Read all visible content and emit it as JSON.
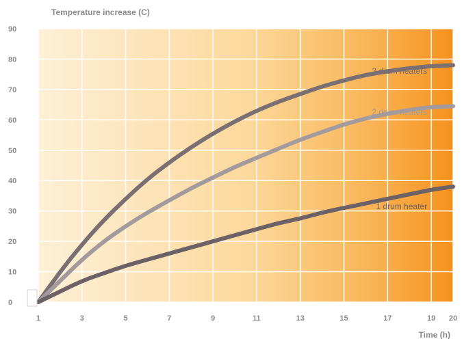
{
  "chart_data": {
    "type": "line",
    "title": "",
    "ylabel": "Temperature increase (C)",
    "xlabel": "Time (h)",
    "xlim": [
      1,
      20
    ],
    "ylim": [
      0,
      90
    ],
    "x_ticks": [
      1,
      3,
      5,
      7,
      9,
      11,
      13,
      15,
      17,
      19,
      20
    ],
    "y_ticks": [
      0,
      10,
      20,
      30,
      40,
      50,
      60,
      70,
      80,
      90
    ],
    "grid": true,
    "background": "gradient light cream to orange",
    "x": [
      1,
      2,
      3,
      4,
      5,
      6,
      7,
      8,
      9,
      10,
      11,
      12,
      13,
      14,
      15,
      16,
      17,
      18,
      19,
      20
    ],
    "series": [
      {
        "name": "3 drum heaters",
        "color": "#7a6f73",
        "values": [
          0,
          10,
          19,
          27,
          34,
          40.5,
          46,
          51,
          55.5,
          59.5,
          63,
          66,
          68.5,
          71,
          73,
          74.8,
          76,
          77,
          77.7,
          78
        ]
      },
      {
        "name": "2 drum heaters",
        "color": "#a39a9d",
        "values": [
          0,
          7,
          14,
          20,
          25,
          29.5,
          33.5,
          37.5,
          41,
          44.5,
          47.5,
          50.5,
          53.5,
          56,
          58.5,
          60.5,
          62,
          63.3,
          64.2,
          64.5
        ]
      },
      {
        "name": "1 drum heater",
        "color": "#6b6166",
        "values": [
          0,
          3.5,
          7,
          9.5,
          12,
          14,
          16,
          18,
          20,
          22,
          24,
          26,
          27.5,
          29.5,
          31,
          32.5,
          34,
          35.5,
          37,
          38
        ]
      }
    ]
  }
}
